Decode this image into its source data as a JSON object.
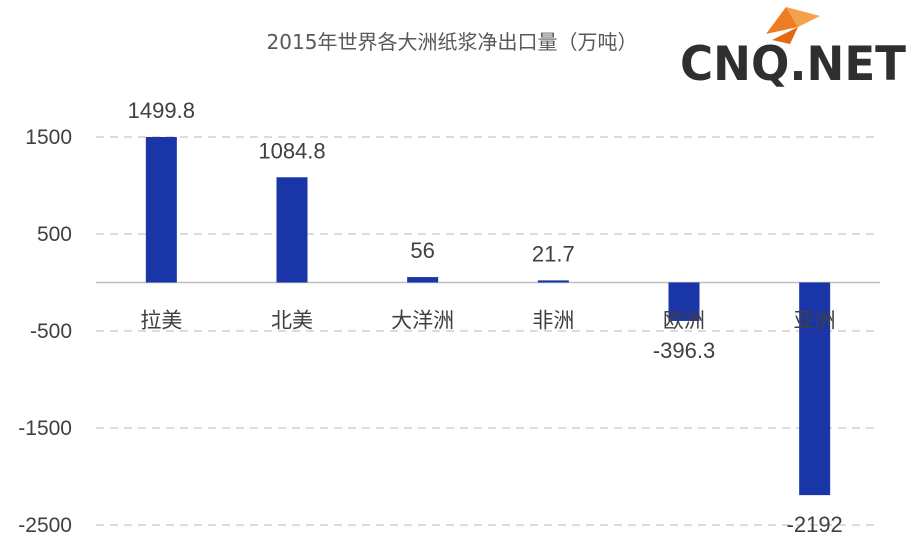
{
  "logo": {
    "text": "CNQ.NET",
    "accent_color": "#f07c22"
  },
  "colors": {
    "bar": "#1a35a8",
    "grid": "#c8c8c8",
    "text": "#404040"
  },
  "chart_data": {
    "type": "bar",
    "title": "2015年世界各大洲纸浆净出口量（万吨）",
    "categories": [
      "拉美",
      "北美",
      "大洋洲",
      "非洲",
      "欧洲",
      "亚洲"
    ],
    "values": [
      1499.8,
      1084.8,
      56,
      21.7,
      -396.3,
      -2192
    ],
    "value_labels": [
      "1499.8",
      "1084.8",
      "56",
      "21.7",
      "-396.3",
      "-2192"
    ],
    "yticks": [
      1500,
      500,
      -500,
      -1500,
      -2500
    ],
    "ytick_labels": [
      "1500",
      "500",
      "-500",
      "-1500",
      "-2500"
    ],
    "ylim": [
      -2500,
      1500
    ],
    "grid": true,
    "legend": "none"
  }
}
